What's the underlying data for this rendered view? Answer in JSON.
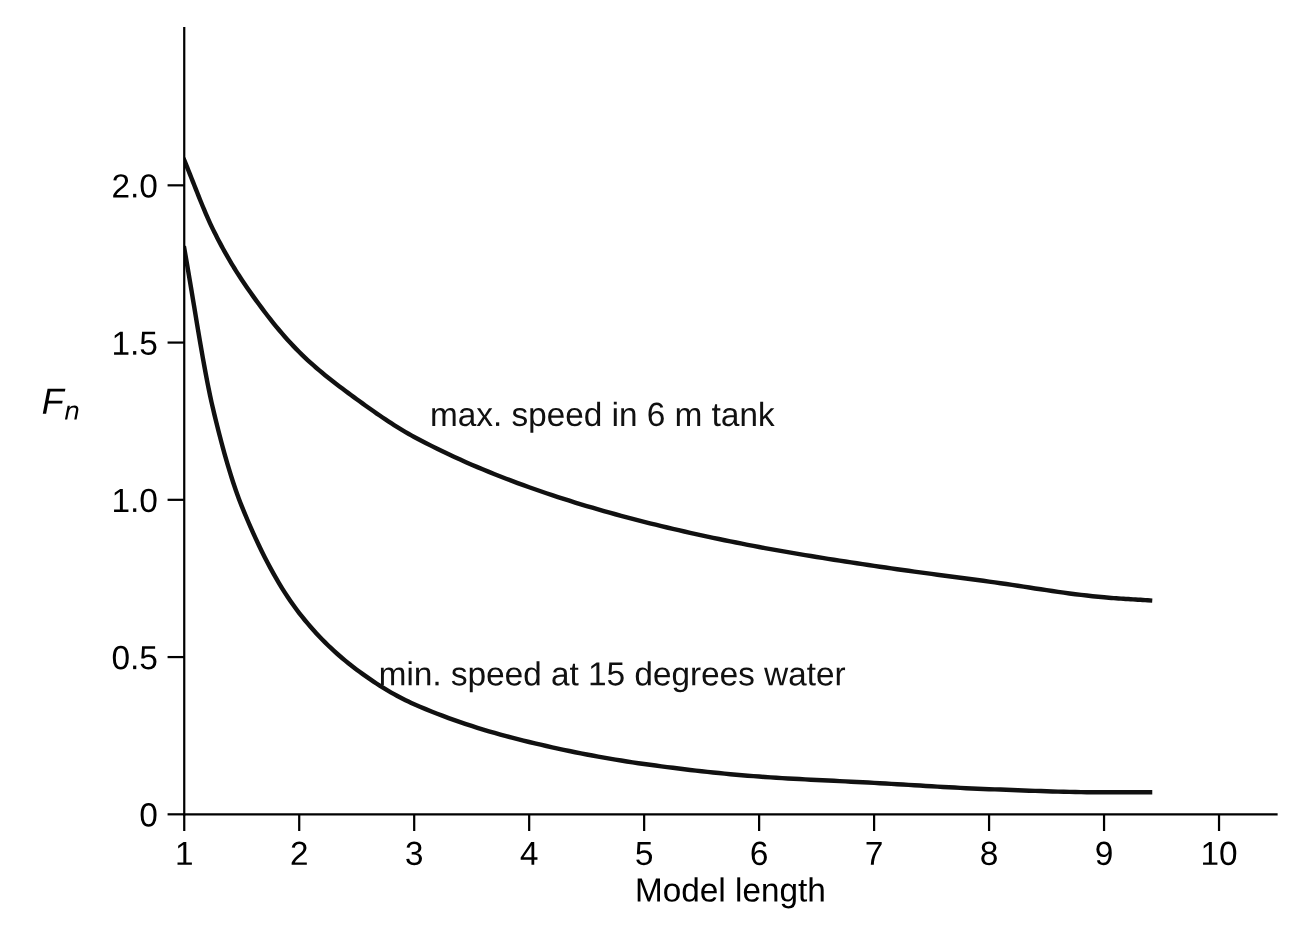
{
  "chart_data": {
    "type": "line",
    "xlabel": "Model length",
    "ylabel": "F$_{n}$",
    "xlim": [
      1,
      10.5
    ],
    "ylim": [
      0,
      2.5
    ],
    "xticks": [
      1,
      2,
      3,
      4,
      5,
      6,
      7,
      8,
      9,
      10
    ],
    "yticks": [
      0,
      {
        "value": 0.5,
        "label": "0.5"
      },
      {
        "value": 1.0,
        "label": "1.0"
      },
      {
        "value": 1.5,
        "label": "1.5"
      },
      {
        "value": 2.0,
        "label": "2.0"
      }
    ],
    "grid": false,
    "legend": false,
    "marker": "none",
    "line_style": "solid",
    "series": [
      {
        "color": "#111111",
        "x": [
          1,
          1.25,
          1.5,
          2,
          2.5,
          3,
          4,
          5,
          6,
          7,
          8,
          9,
          9.4
        ],
        "values": [
          2.08,
          1.86,
          1.7,
          1.47,
          1.32,
          1.2,
          1.04,
          0.93,
          0.85,
          0.79,
          0.74,
          0.69,
          0.68
        ]
      },
      {
        "color": "#111111",
        "x": [
          1,
          1.25,
          1.5,
          2,
          2.5,
          3,
          4,
          5,
          6,
          7,
          8,
          9,
          9.4
        ],
        "values": [
          1.8,
          1.29,
          0.98,
          0.64,
          0.46,
          0.35,
          0.23,
          0.16,
          0.12,
          0.1,
          0.08,
          0.07,
          0.07
        ]
      }
    ],
    "annotations": [
      "max. speed in 6 m tank",
      "min. speed at 15 degrees water"
    ]
  }
}
